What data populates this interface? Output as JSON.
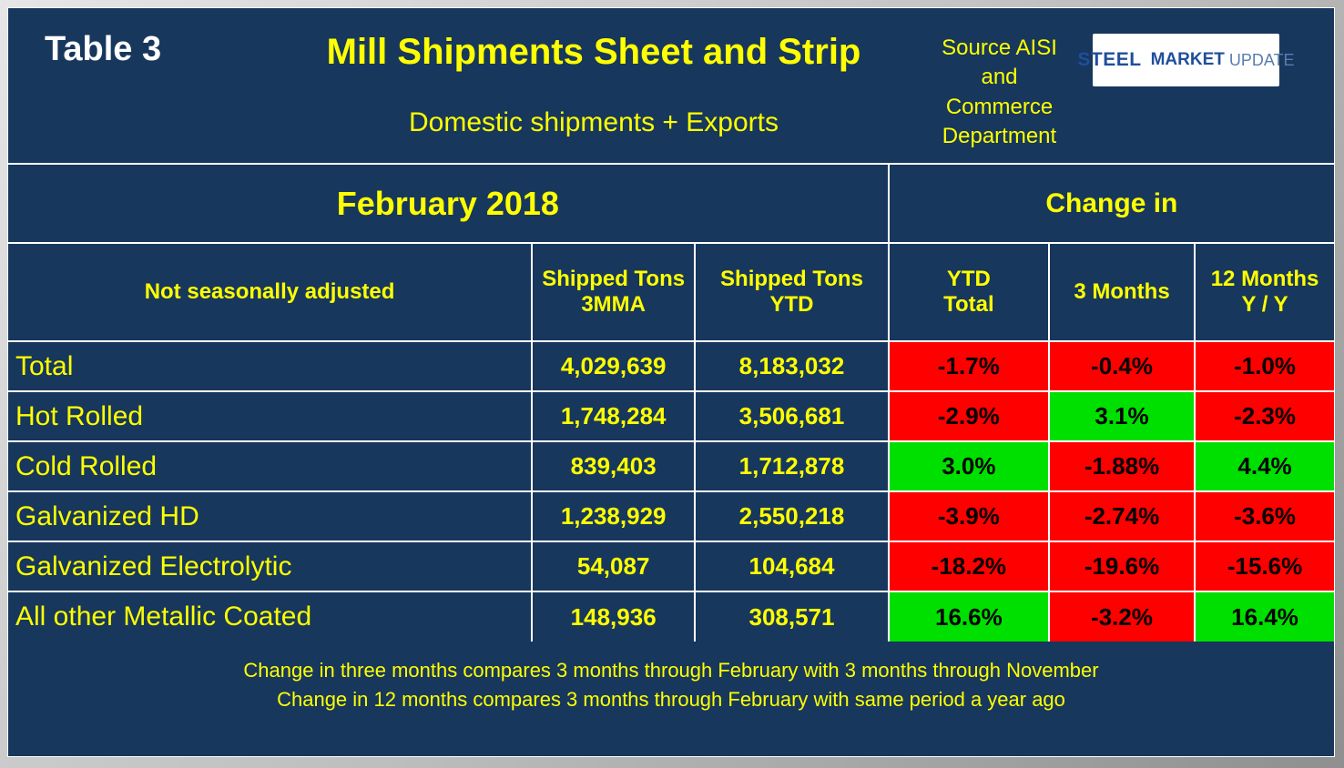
{
  "header": {
    "table_label": "Table 3",
    "source_lines": [
      "Source AISI",
      "and",
      "Commerce",
      "Department"
    ],
    "logo": {
      "steel": "STEEL",
      "market": "MARKET",
      "update": "UPDATE"
    }
  },
  "labels": {
    "change_in": "Change in"
  },
  "colors": {
    "background_navy": "#17375d",
    "accent_yellow": "#ffff00",
    "negative_red": "#ff0000",
    "positive_green": "#00e000",
    "border_white": "#ffffff",
    "logo_blue": "#1f4e9c",
    "logo_red": "#e8112d"
  },
  "chart_data": {
    "type": "table",
    "title": "Mill Shipments Sheet and Strip",
    "subtitle": "Domestic shipments + Exports",
    "period": "February 2018",
    "columns": [
      "Not seasonally adjusted",
      "Shipped Tons\n3MMA",
      "Shipped Tons\nYTD",
      "YTD\nTotal",
      "3 Months",
      "12 Months\nY / Y"
    ],
    "rows": [
      {
        "label": "Total",
        "shipped_tons_3mma": "4,029,639",
        "shipped_tons_ytd": "8,183,032",
        "ytd_total": "-1.7%",
        "three_months": "-0.4%",
        "twelve_months_yy": "-1.0%"
      },
      {
        "label": "Hot Rolled",
        "shipped_tons_3mma": "1,748,284",
        "shipped_tons_ytd": "3,506,681",
        "ytd_total": "-2.9%",
        "three_months": "3.1%",
        "twelve_months_yy": "-2.3%"
      },
      {
        "label": "Cold Rolled",
        "shipped_tons_3mma": "839,403",
        "shipped_tons_ytd": "1,712,878",
        "ytd_total": "3.0%",
        "three_months": "-1.88%",
        "twelve_months_yy": "4.4%"
      },
      {
        "label": "Galvanized HD",
        "shipped_tons_3mma": "1,238,929",
        "shipped_tons_ytd": "2,550,218",
        "ytd_total": "-3.9%",
        "three_months": "-2.74%",
        "twelve_months_yy": "-3.6%"
      },
      {
        "label": "Galvanized Electrolytic",
        "shipped_tons_3mma": "54,087",
        "shipped_tons_ytd": "104,684",
        "ytd_total": "-18.2%",
        "three_months": "-19.6%",
        "twelve_months_yy": "-15.6%"
      },
      {
        "label": "All other Metallic Coated",
        "shipped_tons_3mma": "148,936",
        "shipped_tons_ytd": "308,571",
        "ytd_total": "16.6%",
        "three_months": "-3.2%",
        "twelve_months_yy": "16.4%"
      }
    ],
    "footnotes": [
      "Change in three months compares 3 months through February with 3 months through November",
      "Change in 12 months compares 3 months through February with same period a year ago"
    ],
    "legend_note": "green = positive change, red = negative change"
  }
}
